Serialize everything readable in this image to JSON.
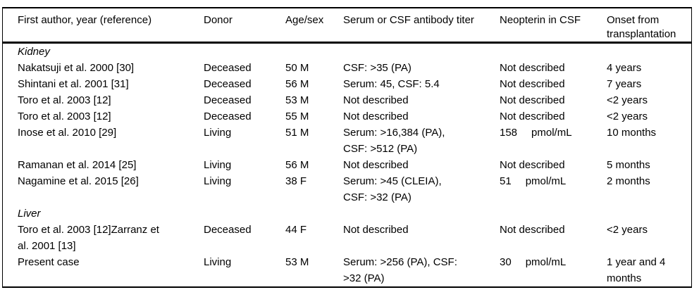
{
  "table": {
    "columns": [
      {
        "key": "author",
        "label": "First author, year (reference)"
      },
      {
        "key": "donor",
        "label": "Donor"
      },
      {
        "key": "age_sex",
        "label": "Age/sex"
      },
      {
        "key": "titer",
        "label": "Serum or CSF antibody titer"
      },
      {
        "key": "neopterin",
        "label": "Neopterin in CSF"
      },
      {
        "key": "onset",
        "label": "Onset from\ntransplantation"
      }
    ],
    "sections": [
      {
        "name": "Kidney",
        "rows": [
          {
            "author": "Nakatsuji et al. 2000 [30]",
            "donor": "Deceased",
            "age_sex": "50 M",
            "titer": "CSF: >35 (PA)",
            "neopterin": "Not described",
            "onset": "4 years"
          },
          {
            "author": "Shintani et al. 2001 [31]",
            "donor": "Deceased",
            "age_sex": "56 M",
            "titer": "Serum: 45, CSF: 5.4",
            "neopterin": "Not described",
            "onset": "7 years"
          },
          {
            "author": "Toro et al. 2003 [12]",
            "donor": "Deceased",
            "age_sex": "53 M",
            "titer": "Not described",
            "neopterin": "Not described",
            "onset": "<2 years"
          },
          {
            "author": "Toro et al. 2003 [12]",
            "donor": "Deceased",
            "age_sex": "55 M",
            "titer": "Not described",
            "neopterin": "Not described",
            "onset": "<2 years"
          },
          {
            "author": "Inose et al. 2010 [29]",
            "donor": "Living",
            "age_sex": "51 M",
            "titer": "Serum: >16,384 (PA),\nCSF: >512 (PA)",
            "neopterin": {
              "value": "158",
              "unit": "pmol/mL"
            },
            "onset": "10 months"
          },
          {
            "author": "Ramanan et al. 2014 [25]",
            "donor": "Living",
            "age_sex": "56 M",
            "titer": "Not described",
            "neopterin": "Not described",
            "onset": "5 months"
          },
          {
            "author": "Nagamine et al. 2015 [26]",
            "donor": "Living",
            "age_sex": "38 F",
            "titer": "Serum: >45 (CLEIA),\nCSF: >32 (PA)",
            "neopterin": {
              "value": "51",
              "unit": "pmol/mL"
            },
            "onset": "2 months"
          }
        ]
      },
      {
        "name": "Liver",
        "rows": [
          {
            "author": "Toro et al. 2003 [12]Zarranz et\nal. 2001 [13]",
            "donor": "Deceased",
            "age_sex": "44 F",
            "titer": "Not described",
            "neopterin": "Not described",
            "onset": "<2 years"
          },
          {
            "author": "Present case",
            "donor": "Living",
            "age_sex": "53 M",
            "titer": "Serum: >256 (PA), CSF:\n>32 (PA)",
            "neopterin": {
              "value": "30",
              "unit": "pmol/mL"
            },
            "onset": "1 year and 4\nmonths"
          }
        ]
      }
    ]
  },
  "colors": {
    "text": "#000000",
    "rule": "#000000",
    "background": "#ffffff"
  }
}
